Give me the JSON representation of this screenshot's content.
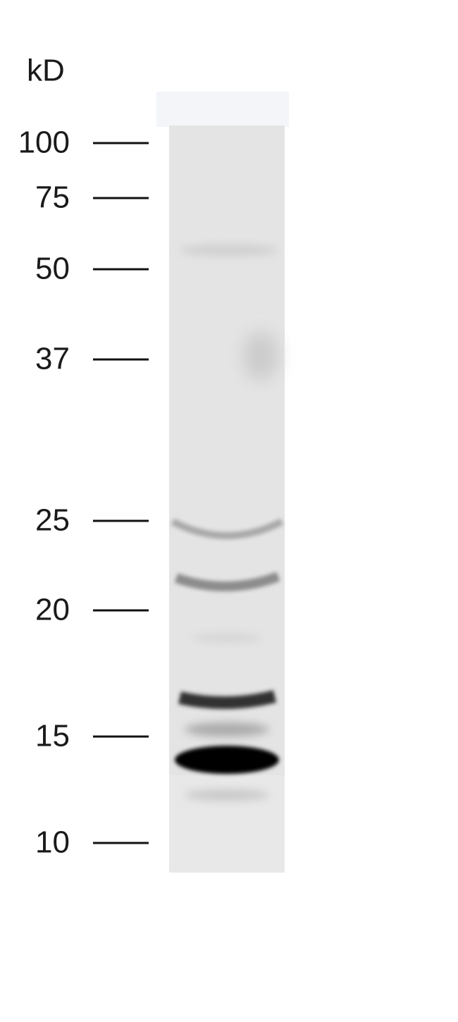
{
  "unit_label": "kD",
  "markers": [
    "100",
    "75",
    "50",
    "37",
    "25",
    "20",
    "15",
    "10"
  ]
}
